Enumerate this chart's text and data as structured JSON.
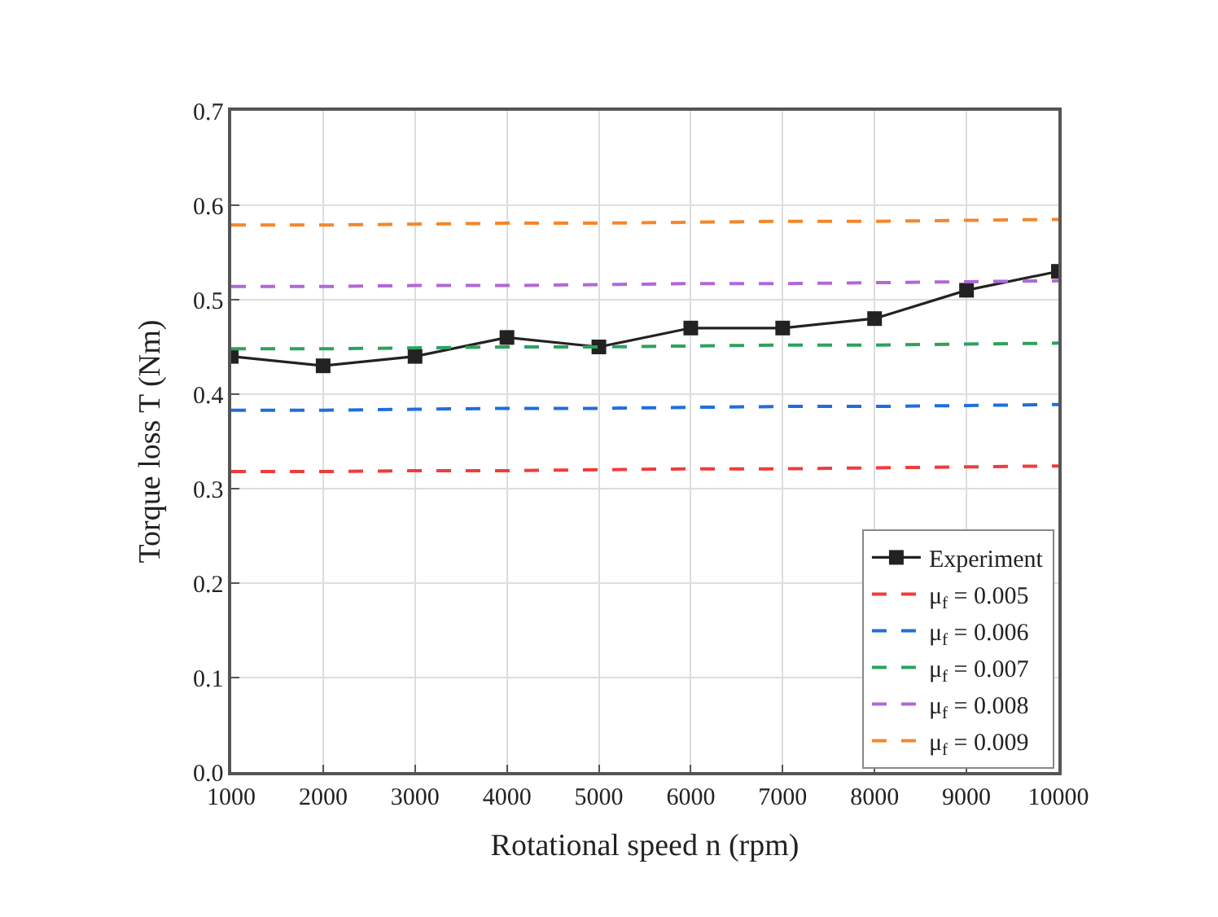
{
  "chart_data": {
    "type": "line",
    "xlabel": "Rotational speed n (rpm)",
    "ylabel": "Torque loss T (Nm)",
    "x": [
      1000,
      2000,
      3000,
      4000,
      5000,
      6000,
      7000,
      8000,
      9000,
      10000
    ],
    "series": [
      {
        "name": "Experiment",
        "color": "#222222",
        "marker": "square",
        "line_style": "solid",
        "values": [
          0.44,
          0.43,
          0.44,
          0.46,
          0.45,
          0.47,
          0.47,
          0.48,
          0.51,
          0.53
        ]
      },
      {
        "name": "μ$_{f}$ = 0.005",
        "color": "#f03c3c",
        "marker": "none",
        "line_style": "dashed",
        "values": [
          0.318,
          0.318,
          0.319,
          0.319,
          0.32,
          0.321,
          0.321,
          0.322,
          0.323,
          0.324
        ]
      },
      {
        "name": "μ$_{f}$ = 0.006",
        "color": "#1f6fdc",
        "marker": "none",
        "line_style": "dashed",
        "values": [
          0.383,
          0.383,
          0.384,
          0.385,
          0.385,
          0.386,
          0.387,
          0.387,
          0.388,
          0.389
        ]
      },
      {
        "name": "μ$_{f}$ = 0.007",
        "color": "#2ca25f",
        "marker": "none",
        "line_style": "dashed",
        "values": [
          0.448,
          0.448,
          0.449,
          0.45,
          0.45,
          0.451,
          0.452,
          0.452,
          0.453,
          0.454
        ]
      },
      {
        "name": "μ$_{f}$ = 0.008",
        "color": "#b068d8",
        "marker": "none",
        "line_style": "dashed",
        "values": [
          0.514,
          0.514,
          0.515,
          0.515,
          0.516,
          0.517,
          0.517,
          0.518,
          0.519,
          0.52
        ]
      },
      {
        "name": "μ$_{f}$ = 0.009",
        "color": "#f5862a",
        "marker": "none",
        "line_style": "dashed",
        "values": [
          0.579,
          0.579,
          0.58,
          0.581,
          0.581,
          0.582,
          0.583,
          0.583,
          0.584,
          0.585
        ]
      }
    ],
    "xlim": [
      1000,
      10000
    ],
    "xticks": [
      1000,
      2000,
      3000,
      4000,
      5000,
      6000,
      7000,
      8000,
      9000,
      10000
    ],
    "ylim": [
      0.0,
      0.7
    ],
    "yticks": [
      {
        "value": 0.0,
        "label": "0.0"
      },
      0.1,
      0.2,
      0.3,
      0.4,
      0.5,
      0.6,
      0.7
    ],
    "grid": true,
    "legend": "bottom right"
  }
}
